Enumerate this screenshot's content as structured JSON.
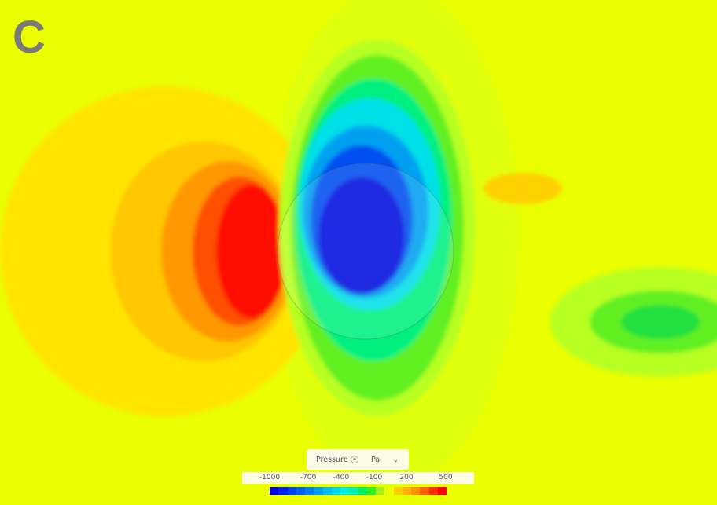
{
  "panel_label": "C",
  "legend": {
    "quantity": "Pressure",
    "info_icon": "info-circle-icon",
    "unit": "Pa",
    "dropdown_icon": "chevron-down-icon",
    "ticks": [
      "-1000",
      "-700",
      "-400",
      "-100",
      "200",
      "500"
    ],
    "range": [
      -1000,
      500
    ],
    "colors": [
      "#0000e0",
      "#0020f0",
      "#0040f0",
      "#0060f0",
      "#0080f0",
      "#00a0f0",
      "#00c0f0",
      "#00d8f0",
      "#00f0e0",
      "#00f0b0",
      "#00f060",
      "#30f020",
      "#a0f020",
      "#f0ff00",
      "#ffd000",
      "#ffb000",
      "#ff9000",
      "#ff6000",
      "#ff3000",
      "#ff0000"
    ]
  }
}
